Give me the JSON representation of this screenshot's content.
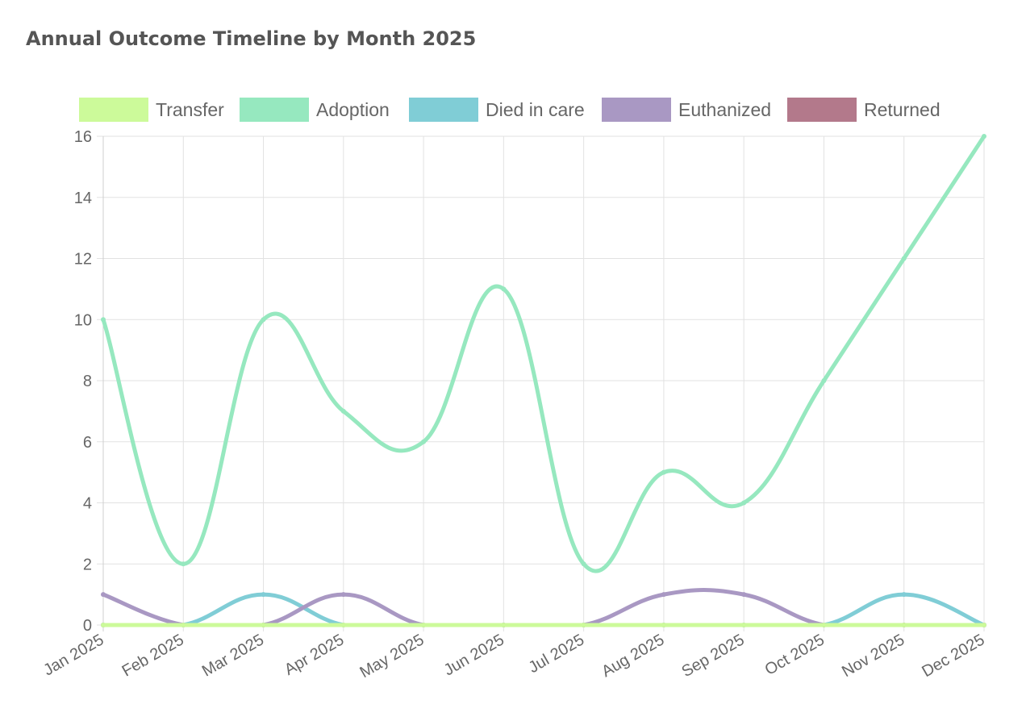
{
  "chart_data": {
    "type": "line",
    "title": "Annual Outcome Timeline by Month 2025",
    "categories": [
      "Jan 2025",
      "Feb 2025",
      "Mar 2025",
      "Apr 2025",
      "May 2025",
      "Jun 2025",
      "Jul 2025",
      "Aug 2025",
      "Sep 2025",
      "Oct 2025",
      "Nov 2025",
      "Dec 2025"
    ],
    "ylim": [
      0,
      16
    ],
    "yticks": [
      0,
      2,
      4,
      6,
      8,
      10,
      12,
      14,
      16
    ],
    "grid": true,
    "legend_position": "top",
    "series": [
      {
        "name": "Transfer",
        "color": "#ccfa9a",
        "values": [
          0,
          0,
          0,
          0,
          0,
          0,
          0,
          0,
          0,
          0,
          0,
          0
        ]
      },
      {
        "name": "Adoption",
        "color": "#96e8bf",
        "values": [
          10,
          2,
          10,
          7,
          6,
          11,
          2,
          5,
          4,
          8,
          12,
          16
        ]
      },
      {
        "name": "Died in care",
        "color": "#80cdd6",
        "values": [
          0,
          0,
          1,
          0,
          0,
          0,
          0,
          0,
          0,
          0,
          1,
          0
        ]
      },
      {
        "name": "Euthanized",
        "color": "#a998c3",
        "values": [
          1,
          0,
          0,
          1,
          0,
          0,
          0,
          1,
          1,
          0,
          0,
          0
        ]
      },
      {
        "name": "Returned",
        "color": "#b3798b",
        "values": [
          0,
          0,
          0,
          0,
          0,
          0,
          0,
          0,
          0,
          0,
          0,
          0
        ]
      }
    ]
  }
}
